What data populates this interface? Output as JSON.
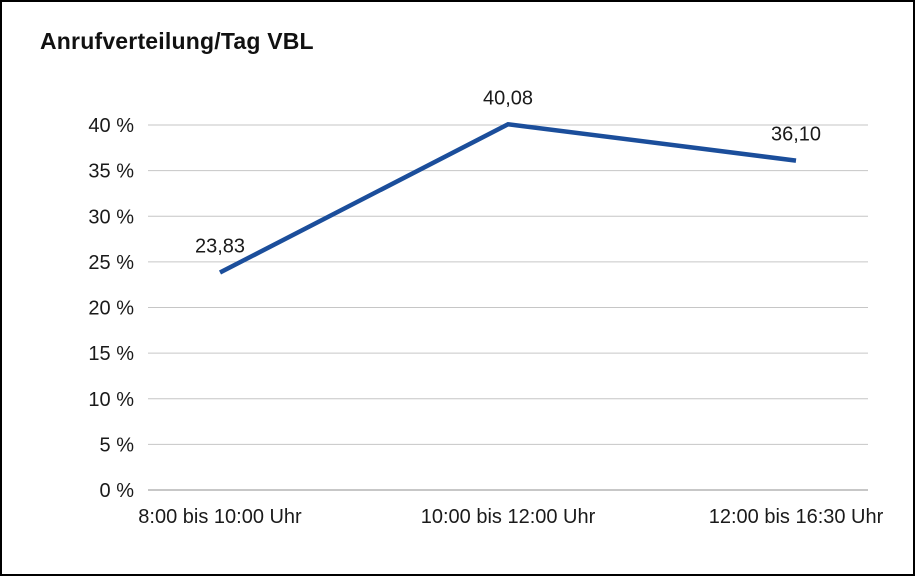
{
  "title": "Anrufverteilung/Tag VBL",
  "chart_data": {
    "type": "line",
    "title": "Anrufverteilung/Tag VBL",
    "categories": [
      "8:00 bis 10:00 Uhr",
      "10:00 bis 12:00 Uhr",
      "12:00 bis 16:30 Uhr"
    ],
    "values": [
      23.83,
      40.08,
      36.1
    ],
    "value_labels": [
      "23,83",
      "40,08",
      "36,10"
    ],
    "xlabel": "",
    "ylabel": "",
    "ylim": [
      0,
      40
    ],
    "ytick_values": [
      0,
      5,
      10,
      15,
      20,
      25,
      30,
      35,
      40
    ],
    "ytick_labels": [
      "0 %",
      "5 %",
      "10 %",
      "15 %",
      "20 %",
      "25 %",
      "30 %",
      "35 %",
      "40 %"
    ],
    "grid": true,
    "legend": false,
    "line_color": "#1b4e9b",
    "label_color": "#1a1a1a",
    "grid_color": "#c6c6c6",
    "axis_color": "#8f8f8f",
    "background_color": "#ffffff",
    "border_color": "#000000"
  }
}
